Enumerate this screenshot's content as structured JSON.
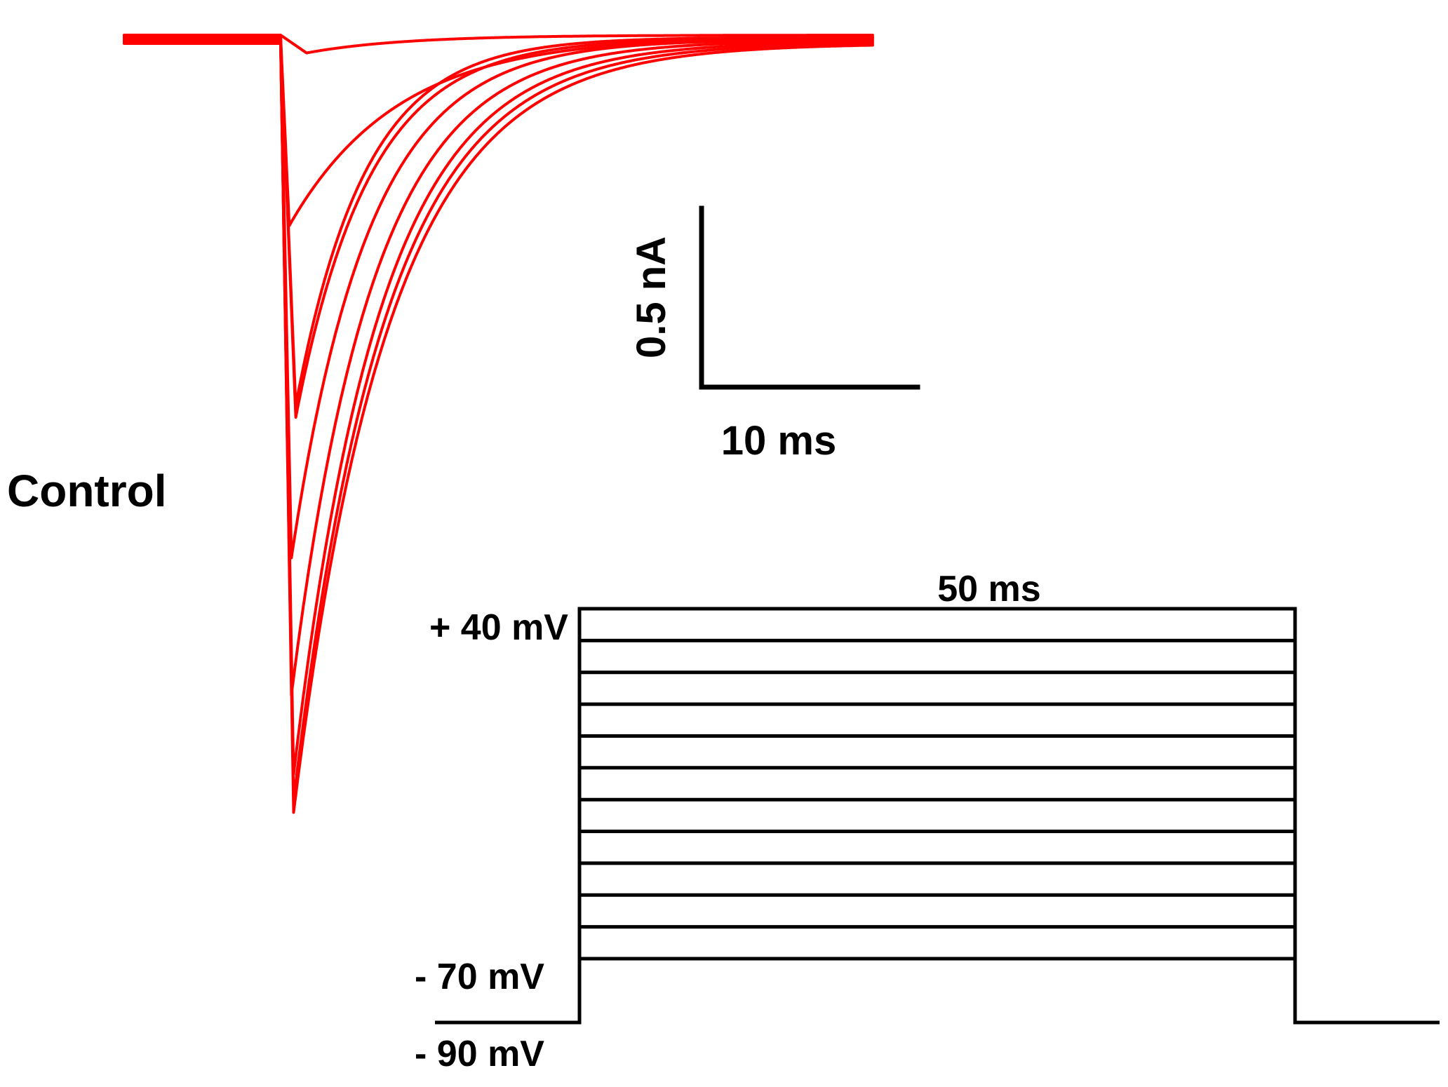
{
  "colors": {
    "traces": "#ff0000",
    "ink": "#000000",
    "background": "#ffffff"
  },
  "chart_data": {
    "type": "line",
    "condition_label": "Control",
    "current_traces": {
      "unit": "nA",
      "time_unit": "ms",
      "baseline_nA": 0,
      "series": [
        {
          "peak_nA": -0.05,
          "time_to_peak_ms": 1.2,
          "decay_tau_ms": 4.5
        },
        {
          "peak_nA": -0.53,
          "time_to_peak_ms": 0.4,
          "decay_tau_ms": 5.0
        },
        {
          "peak_nA": -1.03,
          "time_to_peak_ms": 0.7,
          "decay_tau_ms": 3.2
        },
        {
          "peak_nA": -1.06,
          "time_to_peak_ms": 0.7,
          "decay_tau_ms": 3.4
        },
        {
          "peak_nA": -1.45,
          "time_to_peak_ms": 0.5,
          "decay_tau_ms": 3.6
        },
        {
          "peak_nA": -1.83,
          "time_to_peak_ms": 0.5,
          "decay_tau_ms": 3.8
        },
        {
          "peak_nA": -2.05,
          "time_to_peak_ms": 0.6,
          "decay_tau_ms": 4.0
        },
        {
          "peak_nA": -2.12,
          "time_to_peak_ms": 0.6,
          "decay_tau_ms": 4.2
        },
        {
          "peak_nA": -2.15,
          "time_to_peak_ms": 0.6,
          "decay_tau_ms": 4.4
        }
      ]
    },
    "scale_bar": {
      "current_label": "0.5 nA",
      "current_value": 0.5,
      "time_label": "10 ms",
      "time_value": 10
    },
    "voltage_protocol": {
      "unit": "mV",
      "holding_mV": -90,
      "step_min_mV": -70,
      "step_max_mV": 40,
      "step_increment_mV": 10,
      "step_duration_ms": 50,
      "labels": {
        "top": "+ 40 mV",
        "bottom_step": "- 70 mV",
        "holding": "- 90 mV",
        "duration": "50 ms"
      }
    }
  }
}
